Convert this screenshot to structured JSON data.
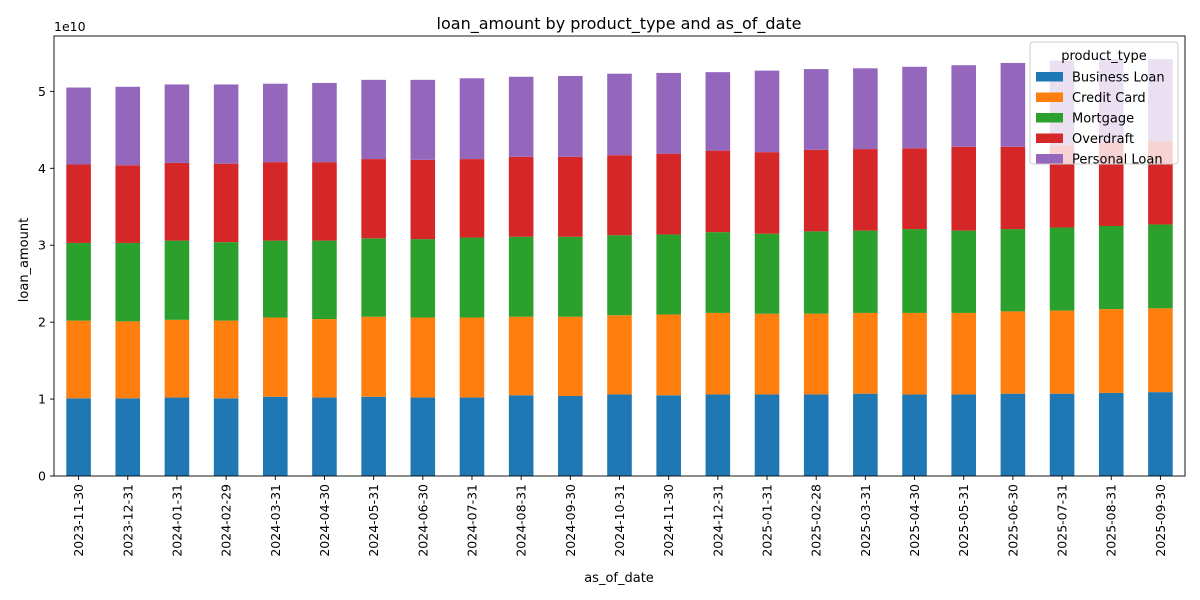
{
  "chart_data": {
    "type": "bar",
    "stacked": true,
    "title": "loan_amount by product_type and as_of_date",
    "xlabel": "as_of_date",
    "ylabel": "loan_amount",
    "y_offset_label": "1e10",
    "y_unit": 10000000000,
    "ylim": [
      0,
      5.72
    ],
    "y_ticks": [
      0,
      1,
      2,
      3,
      4,
      5
    ],
    "y_tick_labels": [
      "0",
      "1",
      "2",
      "3",
      "4",
      "5"
    ],
    "grid": false,
    "legend_title": "product_type",
    "legend_position": "top-right",
    "categories": [
      "2023-11-30",
      "2023-12-31",
      "2024-01-31",
      "2024-02-29",
      "2024-03-31",
      "2024-04-30",
      "2024-05-31",
      "2024-06-30",
      "2024-07-31",
      "2024-08-31",
      "2024-09-30",
      "2024-10-31",
      "2024-11-30",
      "2024-12-31",
      "2025-01-31",
      "2025-02-28",
      "2025-03-31",
      "2025-04-30",
      "2025-05-31",
      "2025-06-30",
      "2025-07-31",
      "2025-08-31",
      "2025-09-30"
    ],
    "series": [
      {
        "name": "Business Loan",
        "color": "#1f77b4",
        "values": [
          1.01,
          1.01,
          1.02,
          1.01,
          1.03,
          1.02,
          1.03,
          1.02,
          1.02,
          1.05,
          1.04,
          1.06,
          1.05,
          1.06,
          1.06,
          1.06,
          1.07,
          1.06,
          1.06,
          1.07,
          1.07,
          1.08,
          1.09
        ]
      },
      {
        "name": "Credit Card",
        "color": "#ff7f0e",
        "values": [
          1.01,
          1.0,
          1.01,
          1.01,
          1.03,
          1.02,
          1.04,
          1.04,
          1.04,
          1.02,
          1.03,
          1.03,
          1.05,
          1.06,
          1.05,
          1.05,
          1.05,
          1.06,
          1.06,
          1.07,
          1.08,
          1.09,
          1.09
        ]
      },
      {
        "name": "Mortgage",
        "color": "#2ca02c",
        "values": [
          1.01,
          1.02,
          1.03,
          1.02,
          1.0,
          1.02,
          1.02,
          1.02,
          1.04,
          1.04,
          1.04,
          1.04,
          1.04,
          1.05,
          1.04,
          1.07,
          1.07,
          1.09,
          1.07,
          1.07,
          1.08,
          1.08,
          1.09
        ]
      },
      {
        "name": "Overdraft",
        "color": "#d62728",
        "values": [
          1.02,
          1.01,
          1.01,
          1.02,
          1.02,
          1.02,
          1.03,
          1.03,
          1.02,
          1.04,
          1.04,
          1.04,
          1.05,
          1.06,
          1.06,
          1.06,
          1.06,
          1.05,
          1.09,
          1.07,
          1.07,
          1.09,
          1.08
        ]
      },
      {
        "name": "Personal Loan",
        "color": "#9467bd",
        "values": [
          1.0,
          1.02,
          1.02,
          1.03,
          1.02,
          1.03,
          1.03,
          1.04,
          1.05,
          1.04,
          1.05,
          1.06,
          1.05,
          1.02,
          1.06,
          1.05,
          1.05,
          1.06,
          1.06,
          1.09,
          1.1,
          1.08,
          1.07
        ]
      }
    ]
  }
}
